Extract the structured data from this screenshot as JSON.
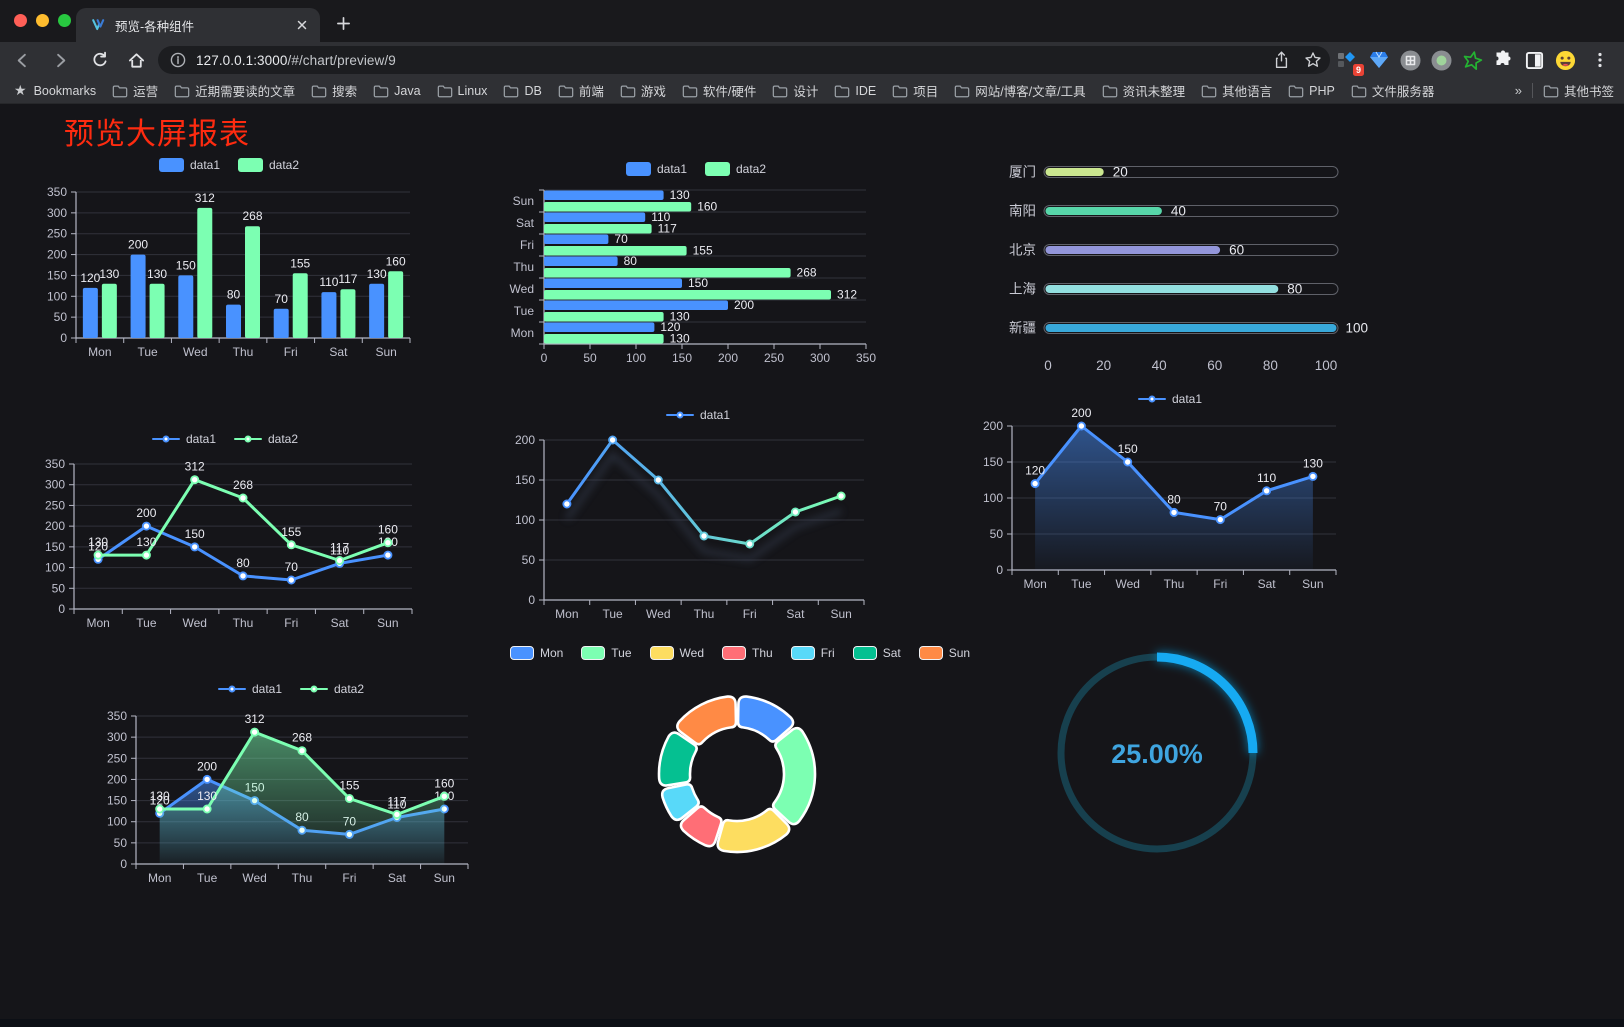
{
  "browser": {
    "tab_title": "预览-各种组件",
    "url_host": "127.0.0.1:3000",
    "url_path": "/#/chart/preview/9",
    "bookmarks_label": "Bookmarks",
    "bookmarks": [
      "运营",
      "近期需要读的文章",
      "搜索",
      "Java",
      "Linux",
      "DB",
      "前端",
      "游戏",
      "软件/硬件",
      "设计",
      "IDE",
      "项目",
      "网站/博客/文章/工具",
      "资讯未整理",
      "其他语言",
      "PHP",
      "文件服务器"
    ],
    "overflow_chevron": "»",
    "other_bookmarks": "其他书签",
    "extension_badge": "9"
  },
  "page": {
    "title": "预览大屏报表",
    "title_color": "#fe2b10"
  },
  "chart_data": [
    {
      "id": "bar-vertical",
      "type": "bar",
      "categories": [
        "Mon",
        "Tue",
        "Wed",
        "Thu",
        "Fri",
        "Sat",
        "Sun"
      ],
      "series": [
        {
          "name": "data1",
          "color": "#4992ff",
          "values": [
            120,
            200,
            150,
            80,
            70,
            110,
            130
          ]
        },
        {
          "name": "data2",
          "color": "#7cffb2",
          "values": [
            130,
            130,
            312,
            268,
            155,
            117,
            160
          ]
        }
      ],
      "ylim": [
        0,
        350
      ],
      "ystep": 50,
      "grid": true,
      "value_labels": true,
      "legend_position": "top"
    },
    {
      "id": "bar-horizontal",
      "type": "bar",
      "horizontal": true,
      "categories": [
        "Mon",
        "Tue",
        "Wed",
        "Thu",
        "Fri",
        "Sat",
        "Sun"
      ],
      "series": [
        {
          "name": "data1",
          "color": "#4992ff",
          "values": [
            120,
            200,
            150,
            80,
            70,
            110,
            130
          ]
        },
        {
          "name": "data2",
          "color": "#7cffb2",
          "values": [
            130,
            130,
            312,
            268,
            155,
            117,
            160
          ]
        }
      ],
      "xlim": [
        0,
        350
      ],
      "xstep": 50,
      "grid": true,
      "value_labels": true,
      "legend_position": "top"
    },
    {
      "id": "city-progress",
      "type": "bar",
      "horizontal": true,
      "style": "progress",
      "categories": [
        "厦门",
        "南阳",
        "北京",
        "上海",
        "新疆"
      ],
      "values": [
        20,
        40,
        60,
        80,
        100
      ],
      "colors": [
        "#cbe790",
        "#57d6a9",
        "#9396da",
        "#93dfe0",
        "#38a8da"
      ],
      "xlim": [
        0,
        100
      ],
      "xstep": 20,
      "value_labels": true
    },
    {
      "id": "line-two",
      "type": "line",
      "categories": [
        "Mon",
        "Tue",
        "Wed",
        "Thu",
        "Fri",
        "Sat",
        "Sun"
      ],
      "series": [
        {
          "name": "data1",
          "color": "#4992ff",
          "values": [
            120,
            200,
            150,
            80,
            70,
            110,
            130
          ]
        },
        {
          "name": "data2",
          "color": "#7cffb2",
          "values": [
            130,
            130,
            312,
            268,
            155,
            117,
            160
          ]
        }
      ],
      "ylim": [
        0,
        350
      ],
      "ystep": 50,
      "grid": true,
      "value_labels": true,
      "legend_position": "top"
    },
    {
      "id": "line-gradient",
      "type": "line",
      "shadow": true,
      "categories": [
        "Mon",
        "Tue",
        "Wed",
        "Thu",
        "Fri",
        "Sat",
        "Sun"
      ],
      "series": [
        {
          "name": "data1",
          "color": "#4992ff",
          "color_end": "#7cffb2",
          "gradient": true,
          "values": [
            120,
            200,
            150,
            80,
            70,
            110,
            130
          ]
        }
      ],
      "ylim": [
        0,
        200
      ],
      "ystep": 50,
      "grid": true,
      "value_labels": false,
      "legend_position": "top"
    },
    {
      "id": "line-area-blue",
      "type": "line",
      "categories": [
        "Mon",
        "Tue",
        "Wed",
        "Thu",
        "Fri",
        "Sat",
        "Sun"
      ],
      "series": [
        {
          "name": "data1",
          "color": "#4992ff",
          "area": true,
          "values": [
            120,
            200,
            150,
            80,
            70,
            110,
            130
          ]
        }
      ],
      "ylim": [
        0,
        200
      ],
      "ystep": 50,
      "grid": true,
      "value_labels": true,
      "legend_position": "top"
    },
    {
      "id": "line-area-two",
      "type": "line",
      "categories": [
        "Mon",
        "Tue",
        "Wed",
        "Thu",
        "Fri",
        "Sat",
        "Sun"
      ],
      "series": [
        {
          "name": "data1",
          "color": "#4992ff",
          "area": true,
          "values": [
            120,
            200,
            150,
            80,
            70,
            110,
            130
          ]
        },
        {
          "name": "data2",
          "color": "#7cffb2",
          "area": true,
          "values": [
            130,
            130,
            312,
            268,
            155,
            117,
            160
          ]
        }
      ],
      "ylim": [
        0,
        350
      ],
      "ystep": 50,
      "grid": true,
      "value_labels": true,
      "legend_position": "top"
    },
    {
      "id": "donut",
      "type": "pie",
      "labels": [
        "Mon",
        "Tue",
        "Wed",
        "Thu",
        "Fri",
        "Sat",
        "Sun"
      ],
      "values": [
        120,
        200,
        150,
        80,
        70,
        110,
        130
      ],
      "colors": [
        "#4992ff",
        "#7cffb2",
        "#fddd60",
        "#ff6e76",
        "#58d9f9",
        "#05c091",
        "#ff8a45"
      ],
      "inner_radius_ratio": 0.6,
      "legend_position": "top"
    },
    {
      "id": "gauge",
      "type": "gauge",
      "value": 25,
      "display": "25.00%",
      "color": "#18aaf2",
      "track_color": "#17404e",
      "text_color": "#3fa5e0"
    }
  ]
}
